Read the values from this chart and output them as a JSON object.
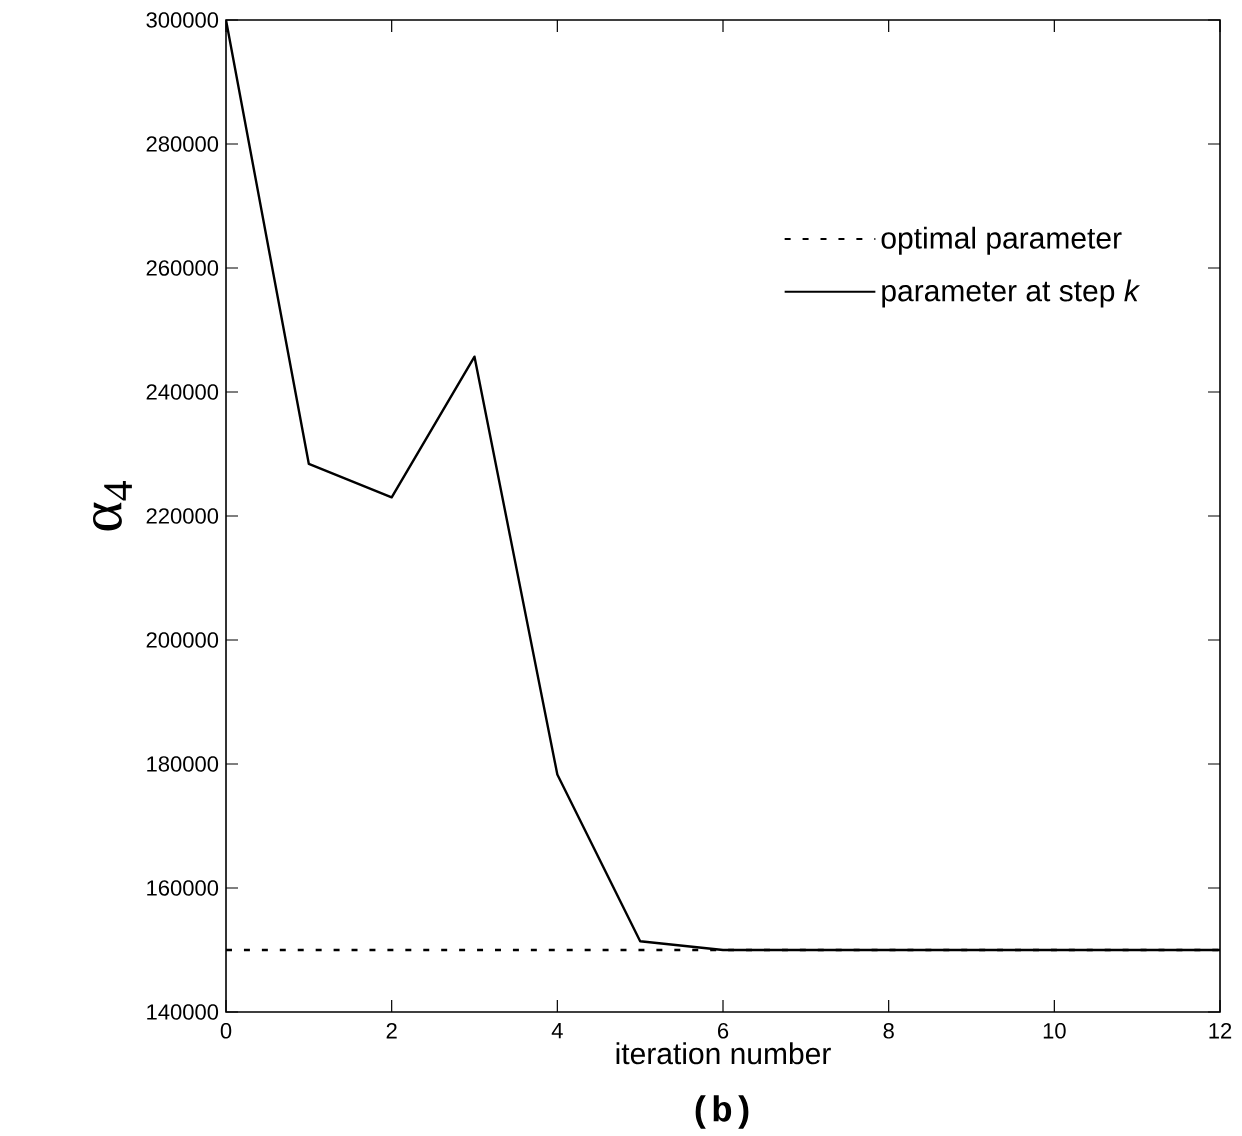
{
  "chart_data": {
    "type": "line",
    "xlabel": "iteration number",
    "ylabel": "α$_{4}$",
    "annotations": [
      "(b)"
    ],
    "series": [
      {
        "name": "optimal parameter",
        "color": "#000000",
        "line_style": "dashed",
        "x": [
          0,
          12
        ],
        "values": [
          150000,
          150000
        ]
      },
      {
        "name": "parameter at step *k*",
        "color": "#000000",
        "line_style": "solid",
        "x": [
          0,
          1,
          2,
          3,
          4,
          5,
          6,
          7,
          8,
          9,
          10,
          11,
          12
        ],
        "values": [
          300000,
          228400,
          223000,
          245700,
          178300,
          151400,
          150000,
          150000,
          150000,
          150000,
          150000,
          150000,
          150000
        ]
      }
    ],
    "xlim": [
      0,
      12
    ],
    "xticks": [
      0,
      2,
      4,
      6,
      8,
      10,
      12
    ],
    "ylim": [
      140000,
      300000
    ],
    "yticks": [
      140000,
      160000,
      180000,
      200000,
      220000,
      240000,
      260000,
      280000,
      300000
    ],
    "grid": false,
    "legend": "top right",
    "marker": "none"
  }
}
